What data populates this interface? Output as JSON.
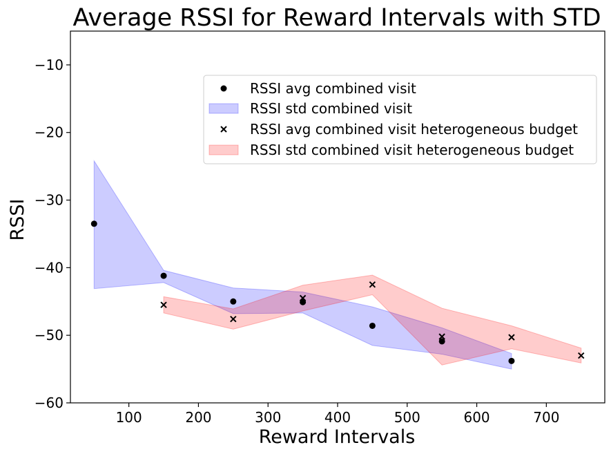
{
  "chart_data": {
    "type": "scatter",
    "title": "Average RSSI for Reward Intervals with STD",
    "xlabel": "Reward Intervals",
    "ylabel": "RSSI",
    "xlim": [
      16,
      784
    ],
    "ylim": [
      -60,
      -5
    ],
    "xticks": [
      100,
      200,
      300,
      400,
      500,
      600,
      700
    ],
    "yticks": [
      -10,
      -20,
      -30,
      -40,
      -50,
      -60
    ],
    "grid": false,
    "legend_position": "upper-right",
    "series": [
      {
        "name": "RSSI avg combined visit",
        "kind": "points",
        "marker": "circle",
        "color": "#000000",
        "x": [
          50,
          150,
          250,
          350,
          450,
          550,
          650
        ],
        "y": [
          -33.5,
          -41.2,
          -45.0,
          -45.1,
          -48.6,
          -50.9,
          -53.8
        ]
      },
      {
        "name": "RSSI std combined visit",
        "kind": "band",
        "color": "#0000ff",
        "x": [
          50,
          150,
          250,
          350,
          450,
          550,
          650
        ],
        "lower": [
          -43.1,
          -42.2,
          -46.8,
          -46.7,
          -51.5,
          -52.8,
          -55.0
        ],
        "upper": [
          -24.2,
          -40.4,
          -43.0,
          -43.6,
          -45.8,
          -48.9,
          -52.7
        ]
      },
      {
        "name": "RSSI avg combined visit heterogeneous budget",
        "kind": "points",
        "marker": "x",
        "color": "#000000",
        "x": [
          150,
          250,
          350,
          450,
          550,
          650,
          750
        ],
        "y": [
          -45.5,
          -47.6,
          -44.5,
          -42.5,
          -50.2,
          -50.3,
          -53.0
        ]
      },
      {
        "name": "RSSI std combined visit heterogeneous budget",
        "kind": "band",
        "color": "#ff0000",
        "x": [
          150,
          250,
          350,
          450,
          550,
          650,
          750
        ],
        "lower": [
          -46.7,
          -49.1,
          -46.4,
          -44.0,
          -54.4,
          -52.0,
          -54.1
        ],
        "upper": [
          -44.3,
          -46.1,
          -42.6,
          -41.1,
          -46.0,
          -48.6,
          -51.9
        ]
      }
    ]
  }
}
